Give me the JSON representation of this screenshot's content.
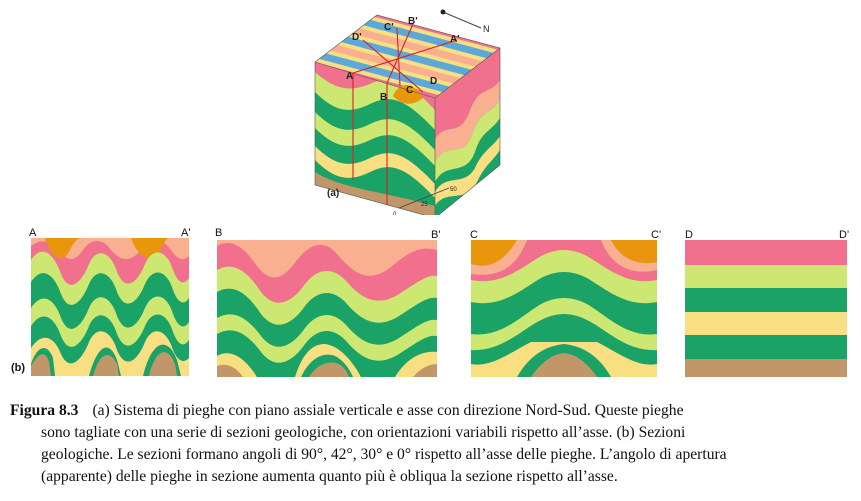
{
  "block": {
    "label": "(a)",
    "north": "N",
    "points": [
      "D'",
      "C'",
      "B'",
      "A'",
      "A",
      "B",
      "C",
      "D"
    ],
    "scale_ticks": [
      "0",
      "25",
      "50"
    ]
  },
  "sections": [
    {
      "left": "A",
      "right": "A'"
    },
    {
      "left": "B",
      "right": "B'"
    },
    {
      "left": "C",
      "right": "C'"
    },
    {
      "left": "D",
      "right": "D'"
    }
  ],
  "sections_label": "(b)",
  "caption": {
    "figure": "Figura 8.3",
    "line1": "(a) Sistema di pieghe con piano assiale verticale e asse con direzione Nord-Sud. Queste pieghe",
    "line2": "sono tagliate con una serie di sezioni geologiche, con orientazioni variabili rispetto all’asse. (b) Sezioni",
    "line3": "geologiche. Le sezioni formano angoli di 90°, 42°, 30° e 0° rispetto all’asse delle pieghe. L’angolo di apertura",
    "line4": "(apparente) delle pieghe in sezione aumenta quanto più è obliqua la sezione rispetto all’asse."
  },
  "colors": {
    "orange": "#e8960c",
    "salmon": "#f8b090",
    "pink": "#f0708e",
    "lime": "#cde872",
    "green": "#1aa267",
    "yellow": "#f8df82",
    "tan": "#c1976a"
  }
}
